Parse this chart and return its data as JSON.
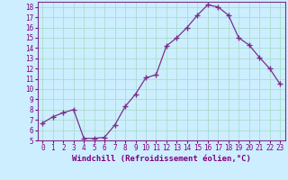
{
  "x": [
    0,
    1,
    2,
    3,
    4,
    5,
    6,
    7,
    8,
    9,
    10,
    11,
    12,
    13,
    14,
    15,
    16,
    17,
    18,
    19,
    20,
    21,
    22,
    23
  ],
  "y": [
    6.7,
    7.3,
    7.7,
    8.0,
    5.2,
    5.2,
    5.3,
    6.5,
    8.3,
    9.5,
    11.1,
    11.4,
    14.2,
    15.0,
    16.0,
    17.2,
    18.2,
    18.0,
    17.2,
    15.0,
    14.3,
    13.1,
    12.0,
    10.5
  ],
  "line_color": "#7B2D8B",
  "marker": "+",
  "marker_size": 4,
  "bg_color": "#cceeff",
  "grid_color": "#aaddcc",
  "xlabel": "Windchill (Refroidissement éolien,°C)",
  "ylim": [
    5,
    18.5
  ],
  "xlim": [
    -0.5,
    23.5
  ],
  "yticks": [
    5,
    6,
    7,
    8,
    9,
    10,
    11,
    12,
    13,
    14,
    15,
    16,
    17,
    18
  ],
  "xticks": [
    0,
    1,
    2,
    3,
    4,
    5,
    6,
    7,
    8,
    9,
    10,
    11,
    12,
    13,
    14,
    15,
    16,
    17,
    18,
    19,
    20,
    21,
    22,
    23
  ],
  "tick_color": "#800080",
  "label_color": "#800080",
  "tick_fontsize": 5.5,
  "xlabel_fontsize": 6.5
}
